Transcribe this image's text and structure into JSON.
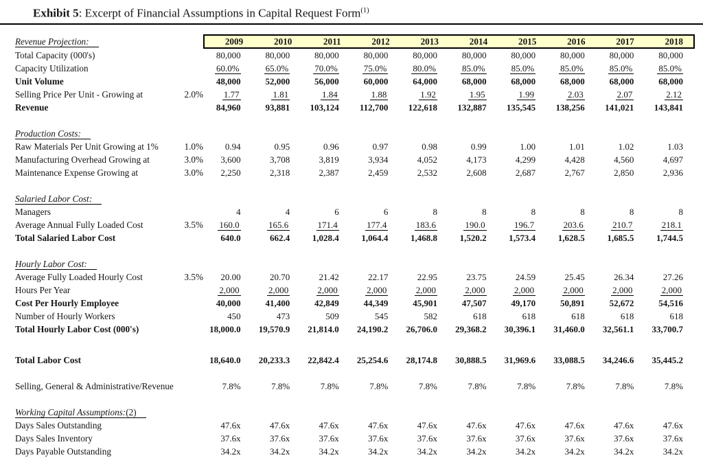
{
  "title": {
    "exhibit": "Exhibit 5",
    "text": ": Excerpt of Financial Assumptions in Capital Request Form",
    "footnote_marker": "(1)"
  },
  "colors": {
    "header_band_bg": "#FFFFCC",
    "border": "#000000",
    "text": "#151515"
  },
  "columns": [
    "2009",
    "2010",
    "2011",
    "2012",
    "2013",
    "2014",
    "2015",
    "2016",
    "2017",
    "2018"
  ],
  "sections": [
    {
      "heading": "Revenue Projection:",
      "rows": [
        {
          "label": "Total Capacity (000's)",
          "rate": "",
          "bold": false,
          "underline": false,
          "values": [
            "80,000",
            "80,000",
            "80,000",
            "80,000",
            "80,000",
            "80,000",
            "80,000",
            "80,000",
            "80,000",
            "80,000"
          ]
        },
        {
          "label": "Capacity Utilization",
          "rate": "",
          "bold": false,
          "underline": true,
          "values": [
            "60.0%",
            "65.0%",
            "70.0%",
            "75.0%",
            "80.0%",
            "85.0%",
            "85.0%",
            "85.0%",
            "85.0%",
            "85.0%"
          ]
        },
        {
          "label": "Unit Volume",
          "rate": "",
          "bold": true,
          "underline": false,
          "values": [
            "48,000",
            "52,000",
            "56,000",
            "60,000",
            "64,000",
            "68,000",
            "68,000",
            "68,000",
            "68,000",
            "68,000"
          ]
        },
        {
          "label": "Selling Price Per Unit - Growing at",
          "rate": "2.0%",
          "bold": false,
          "underline": true,
          "values": [
            "1.77",
            "1.81",
            "1.84",
            "1.88",
            "1.92",
            "1.95",
            "1.99",
            "2.03",
            "2.07",
            "2.12"
          ]
        },
        {
          "label": "Revenue",
          "rate": "",
          "bold": true,
          "underline": false,
          "values": [
            "84,960",
            "93,881",
            "103,124",
            "112,700",
            "122,618",
            "132,887",
            "135,545",
            "138,256",
            "141,021",
            "143,841"
          ]
        }
      ]
    },
    {
      "heading": "Production Costs:",
      "rows": [
        {
          "label": "Raw Materials Per Unit Growing at 1%",
          "rate": "1.0%",
          "bold": false,
          "underline": false,
          "values": [
            "0.94",
            "0.95",
            "0.96",
            "0.97",
            "0.98",
            "0.99",
            "1.00",
            "1.01",
            "1.02",
            "1.03"
          ]
        },
        {
          "label": "Manufacturing Overhead Growing at",
          "rate": "3.0%",
          "bold": false,
          "underline": false,
          "values": [
            "3,600",
            "3,708",
            "3,819",
            "3,934",
            "4,052",
            "4,173",
            "4,299",
            "4,428",
            "4,560",
            "4,697"
          ]
        },
        {
          "label": "Maintenance Expense Growing at",
          "rate": "3.0%",
          "bold": false,
          "underline": false,
          "values": [
            "2,250",
            "2,318",
            "2,387",
            "2,459",
            "2,532",
            "2,608",
            "2,687",
            "2,767",
            "2,850",
            "2,936"
          ]
        }
      ]
    },
    {
      "heading": "Salaried Labor Cost:",
      "rows": [
        {
          "label": "Managers",
          "rate": "",
          "bold": false,
          "underline": false,
          "values": [
            "4",
            "4",
            "6",
            "6",
            "8",
            "8",
            "8",
            "8",
            "8",
            "8"
          ]
        },
        {
          "label": "Average Annual Fully Loaded Cost",
          "rate": "3.5%",
          "bold": false,
          "underline": true,
          "values": [
            "160.0",
            "165.6",
            "171.4",
            "177.4",
            "183.6",
            "190.0",
            "196.7",
            "203.6",
            "210.7",
            "218.1"
          ]
        },
        {
          "label": "Total Salaried Labor Cost",
          "rate": "",
          "bold": true,
          "underline": false,
          "values": [
            "640.0",
            "662.4",
            "1,028.4",
            "1,064.4",
            "1,468.8",
            "1,520.2",
            "1,573.4",
            "1,628.5",
            "1,685.5",
            "1,744.5"
          ]
        }
      ]
    },
    {
      "heading": "Hourly Labor Cost:",
      "rows": [
        {
          "label": "Average Fully Loaded Hourly Cost",
          "rate": "3.5%",
          "bold": false,
          "underline": false,
          "values": [
            "20.00",
            "20.70",
            "21.42",
            "22.17",
            "22.95",
            "23.75",
            "24.59",
            "25.45",
            "26.34",
            "27.26"
          ]
        },
        {
          "label": "Hours Per Year",
          "rate": "",
          "bold": false,
          "underline": true,
          "values": [
            "2,000",
            "2,000",
            "2,000",
            "2,000",
            "2,000",
            "2,000",
            "2,000",
            "2,000",
            "2,000",
            "2,000"
          ]
        },
        {
          "label": "Cost Per Hourly Employee",
          "rate": "",
          "bold": true,
          "underline": false,
          "values": [
            "40,000",
            "41,400",
            "42,849",
            "44,349",
            "45,901",
            "47,507",
            "49,170",
            "50,891",
            "52,672",
            "54,516"
          ]
        },
        {
          "label": "Number of Hourly Workers",
          "rate": "",
          "bold": false,
          "underline": false,
          "values": [
            "450",
            "473",
            "509",
            "545",
            "582",
            "618",
            "618",
            "618",
            "618",
            "618"
          ]
        },
        {
          "label": "Total Hourly Labor Cost (000's)",
          "rate": "",
          "bold": true,
          "underline": false,
          "values": [
            "18,000.0",
            "19,570.9",
            "21,814.0",
            "24,190.2",
            "26,706.0",
            "29,368.2",
            "30,396.1",
            "31,460.0",
            "32,561.1",
            "33,700.7"
          ]
        }
      ]
    },
    {
      "heading": null,
      "extra_gap": true,
      "rows": [
        {
          "label": "Total Labor Cost",
          "rate": "",
          "bold": true,
          "underline": false,
          "values": [
            "18,640.0",
            "20,233.3",
            "22,842.4",
            "25,254.6",
            "28,174.8",
            "30,888.5",
            "31,969.6",
            "33,088.5",
            "34,246.6",
            "35,445.2"
          ]
        }
      ]
    },
    {
      "heading": null,
      "rows": [
        {
          "label": "Selling, General & Administrative/Revenue",
          "rate": "",
          "bold": false,
          "underline": false,
          "values": [
            "7.8%",
            "7.8%",
            "7.8%",
            "7.8%",
            "7.8%",
            "7.8%",
            "7.8%",
            "7.8%",
            "7.8%",
            "7.8%"
          ]
        }
      ]
    },
    {
      "heading": "Working Capital Assumptions:",
      "heading_suffix": "(2)",
      "rows": [
        {
          "label": "Days Sales Outstanding",
          "rate": "",
          "bold": false,
          "underline": false,
          "values": [
            "47.6x",
            "47.6x",
            "47.6x",
            "47.6x",
            "47.6x",
            "47.6x",
            "47.6x",
            "47.6x",
            "47.6x",
            "47.6x"
          ]
        },
        {
          "label": "Days Sales Inventory",
          "rate": "",
          "bold": false,
          "underline": false,
          "values": [
            "37.6x",
            "37.6x",
            "37.6x",
            "37.6x",
            "37.6x",
            "37.6x",
            "37.6x",
            "37.6x",
            "37.6x",
            "37.6x"
          ]
        },
        {
          "label": "Days Payable Outstanding",
          "rate": "",
          "bold": false,
          "underline": false,
          "values": [
            "34.2x",
            "34.2x",
            "34.2x",
            "34.2x",
            "34.2x",
            "34.2x",
            "34.2x",
            "34.2x",
            "34.2x",
            "34.2x"
          ]
        }
      ]
    }
  ]
}
